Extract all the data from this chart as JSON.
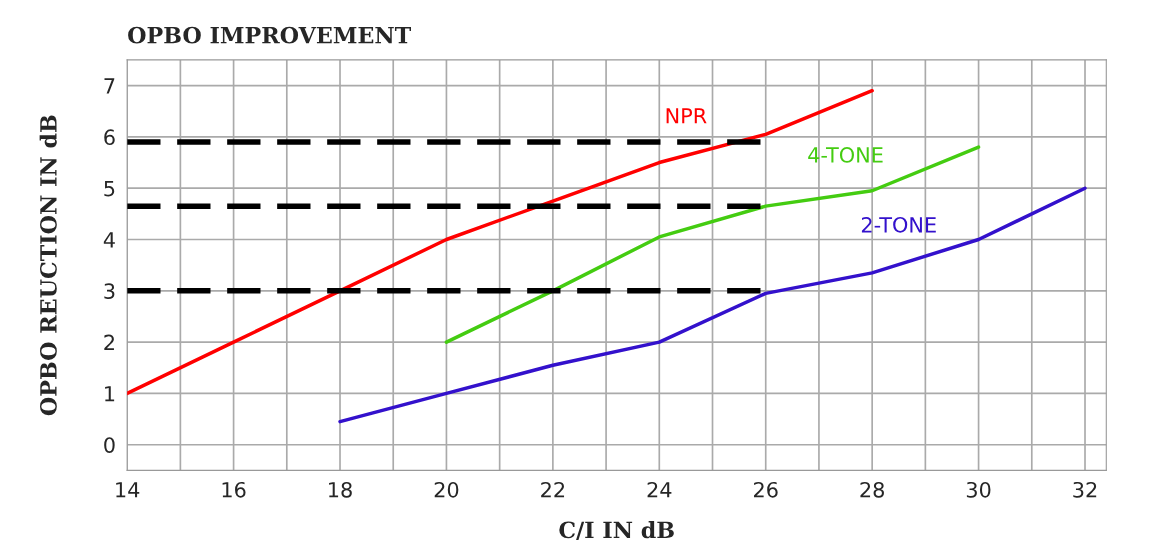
{
  "chart_data": {
    "type": "line",
    "title": "OPBO IMPROVEMENT",
    "xlabel": "C/I IN dB",
    "ylabel": "OPBO REUCTION IN dB",
    "xlim": [
      14,
      32.4
    ],
    "ylim": [
      -0.5,
      7.5
    ],
    "xticks": [
      14,
      {
        "value": 15,
        "label": null
      },
      16,
      {
        "value": 17,
        "label": null
      },
      18,
      {
        "value": 19,
        "label": null
      },
      20,
      {
        "value": 21,
        "label": null
      },
      22,
      {
        "value": 23,
        "label": null
      },
      24,
      {
        "value": 25,
        "label": null
      },
      26,
      {
        "value": 27,
        "label": null
      },
      28,
      {
        "value": 29,
        "label": null
      },
      30,
      {
        "value": 31,
        "label": null
      },
      32
    ],
    "yticks": [
      0,
      1,
      2,
      3,
      4,
      5,
      6,
      7
    ],
    "grid": true,
    "legend": false,
    "series": [
      {
        "name": "NPR",
        "color": "#ff0000",
        "x": [
          14,
          16,
          18,
          20,
          22,
          24,
          26,
          28
        ],
        "values": [
          1,
          2,
          3,
          4,
          4.75,
          5.5,
          6.05,
          6.9
        ]
      },
      {
        "name": "4-TONE",
        "color": "#44cc11",
        "x": [
          20,
          22,
          24,
          26,
          28,
          30
        ],
        "values": [
          2,
          3,
          4.05,
          4.65,
          4.95,
          5.8
        ]
      },
      {
        "name": "2-TONE",
        "color": "#3311cc",
        "x": [
          18,
          20,
          22,
          24,
          26,
          28,
          30,
          32
        ],
        "values": [
          0.45,
          1,
          1.55,
          2,
          2.95,
          3.35,
          4,
          5
        ]
      },
      {
        "color": "#000000",
        "line_style": "dashed",
        "x": [
          14,
          26
        ],
        "values": [
          5.9,
          5.9
        ]
      },
      {
        "color": "#000000",
        "line_style": "dashed",
        "x": [
          14,
          26
        ],
        "values": [
          4.65,
          4.65
        ]
      },
      {
        "color": "#000000",
        "line_style": "dashed",
        "x": [
          14,
          26
        ],
        "values": [
          3,
          3
        ]
      }
    ]
  }
}
